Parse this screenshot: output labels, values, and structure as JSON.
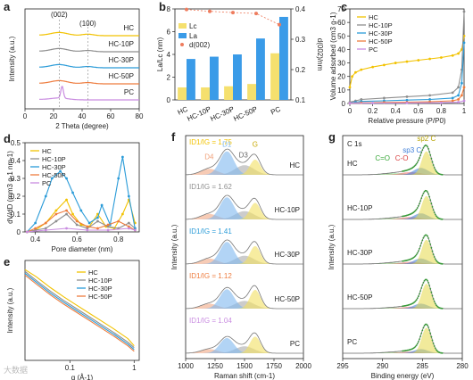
{
  "colors": {
    "HC": "#f2c200",
    "HC10P": "#8e8e8e",
    "HC30P": "#2a9bd8",
    "HC50P": "#ee7c3e",
    "PC": "#c98ce0",
    "Lc": "#f5e06e",
    "La": "#3a9be8",
    "d002": "#ee7c5e",
    "D1": "#7fb8ee",
    "D3": "#9a9a9a",
    "G": "#f2e060",
    "D4": "#f0a078"
  },
  "watermark": "大数据",
  "panels": [
    {
      "id": "a",
      "label": "a",
      "chart_data": {
        "type": "line",
        "xlabel": "2 Theta (degree)",
        "ylabel": "Intensity (a.u.)",
        "xlim": [
          0,
          80
        ],
        "x_ticks": [
          0,
          20,
          40,
          60,
          80
        ],
        "peak_labels": [
          "(002)",
          "(100)"
        ],
        "series": [
          {
            "name": "HC",
            "offset": 4,
            "peaks": [
              [
                24,
                0.25,
                6
              ],
              [
                44,
                0.12,
                4
              ]
            ]
          },
          {
            "name": "HC-10P",
            "offset": 3,
            "peaks": [
              [
                24,
                0.25,
                6
              ],
              [
                44,
                0.1,
                4
              ]
            ]
          },
          {
            "name": "HC-30P",
            "offset": 2,
            "peaks": [
              [
                24,
                0.25,
                6
              ],
              [
                44,
                0.1,
                4
              ]
            ]
          },
          {
            "name": "HC-50P",
            "offset": 1,
            "peaks": [
              [
                24,
                0.25,
                6
              ],
              [
                44,
                0.1,
                4
              ]
            ]
          },
          {
            "name": "PC",
            "offset": 0,
            "peaks": [
              [
                26,
                0.95,
                0.9
              ],
              [
                24,
                0.15,
                6
              ]
            ]
          }
        ]
      }
    },
    {
      "id": "b",
      "label": "b",
      "chart_data": {
        "type": "bar",
        "categories": [
          "HC",
          "HC-10P",
          "HC-30P",
          "HC-50P",
          "PC"
        ],
        "series": [
          {
            "name": "Lc",
            "values": [
              1.1,
              1.1,
              1.2,
              1.4,
              4.1
            ]
          },
          {
            "name": "La",
            "values": [
              3.6,
              3.8,
              4.0,
              5.4,
              7.3
            ]
          }
        ],
        "secondary": {
          "name": "d(002)",
          "values": [
            0.398,
            0.392,
            0.388,
            0.385,
            0.348
          ]
        },
        "ylabel": "La/Lc (nm)",
        "ylim": [
          0,
          8
        ],
        "y2label": "d(002)/nm",
        "y2lim": [
          0.1,
          0.4
        ],
        "y2_ticks": [
          0.1,
          0.2,
          0.3,
          0.4
        ],
        "legend_labels": [
          "Lc",
          "La",
          "d(002)"
        ]
      }
    },
    {
      "id": "c",
      "label": "c",
      "chart_data": {
        "type": "line",
        "xlabel": "Relative pressure (P/P0)",
        "ylabel": "Volume adsorbed (cm3 g-1)",
        "xlim": [
          0,
          1
        ],
        "ylim": [
          0,
          70
        ],
        "x_ticks": [
          0,
          0.2,
          0.4,
          0.6,
          0.8,
          1.0
        ],
        "y_ticks": [
          0,
          10,
          20,
          30,
          40,
          50,
          60,
          70
        ],
        "series": [
          {
            "name": "HC",
            "x": [
              0,
              0.02,
              0.05,
              0.1,
              0.2,
              0.3,
              0.4,
              0.5,
              0.6,
              0.7,
              0.8,
              0.9,
              0.95,
              0.98,
              1.0
            ],
            "y": [
              12,
              20,
              23,
              25,
              27,
              28.5,
              30,
              31,
              32,
              33,
              34,
              35.5,
              37,
              40,
              50
            ]
          },
          {
            "name": "HC-10P",
            "x": [
              0,
              0.05,
              0.1,
              0.3,
              0.5,
              0.7,
              0.9,
              0.95,
              0.98,
              1.0
            ],
            "y": [
              1,
              2,
              3,
              4,
              5,
              6,
              8,
              12,
              25,
              68
            ]
          },
          {
            "name": "HC-30P",
            "x": [
              0,
              0.05,
              0.1,
              0.3,
              0.5,
              0.7,
              0.9,
              0.95,
              0.98,
              1.0
            ],
            "y": [
              0.5,
              1,
              1.5,
              2,
              2.5,
              3,
              4,
              6,
              15,
              45
            ]
          },
          {
            "name": "HC-50P",
            "x": [
              0,
              0.1,
              0.3,
              0.5,
              0.7,
              0.9,
              0.95,
              0.98,
              1.0
            ],
            "y": [
              0.3,
              0.5,
              0.8,
              1,
              1.3,
              2,
              3,
              6,
              12
            ]
          },
          {
            "name": "PC",
            "x": [
              0,
              0.2,
              0.5,
              0.8,
              0.95,
              1.0
            ],
            "y": [
              0.2,
              0.3,
              0.4,
              0.6,
              1,
              2
            ]
          }
        ]
      }
    },
    {
      "id": "d",
      "label": "d",
      "chart_data": {
        "type": "line",
        "xlabel": "Pore diameter (nm)",
        "ylabel": "dV/dD (mm3 g-1 nm-1)",
        "xlim": [
          0.35,
          0.9
        ],
        "ylim": [
          0,
          0.5
        ],
        "x_ticks": [
          0.4,
          0.6,
          0.8
        ],
        "y_ticks": [
          0,
          0.1,
          0.2,
          0.3,
          0.4,
          0.5
        ],
        "series": [
          {
            "name": "HC",
            "x": [
              0.36,
              0.4,
              0.45,
              0.5,
              0.55,
              0.58,
              0.62,
              0.66,
              0.7,
              0.74,
              0.78,
              0.82,
              0.85,
              0.88
            ],
            "y": [
              0.0,
              0.01,
              0.05,
              0.12,
              0.18,
              0.1,
              0.04,
              0.03,
              0.1,
              0.03,
              0.02,
              0.1,
              0.18,
              0.05
            ]
          },
          {
            "name": "HC-10P",
            "x": [
              0.36,
              0.4,
              0.45,
              0.5,
              0.55,
              0.6,
              0.65,
              0.7,
              0.75,
              0.8,
              0.85,
              0.88
            ],
            "y": [
              0,
              0.01,
              0.02,
              0.06,
              0.1,
              0.04,
              0.02,
              0.06,
              0.03,
              0.02,
              0.05,
              0.02
            ]
          },
          {
            "name": "HC-30P",
            "x": [
              0.36,
              0.4,
              0.45,
              0.48,
              0.52,
              0.55,
              0.58,
              0.62,
              0.66,
              0.7,
              0.72,
              0.76,
              0.8,
              0.82,
              0.85,
              0.88
            ],
            "y": [
              0,
              0.05,
              0.2,
              0.3,
              0.34,
              0.3,
              0.22,
              0.12,
              0.05,
              0.08,
              0.15,
              0.04,
              0.3,
              0.42,
              0.2,
              0.02
            ]
          },
          {
            "name": "HC-50P",
            "x": [
              0.36,
              0.4,
              0.45,
              0.5,
              0.55,
              0.6,
              0.65,
              0.7,
              0.75,
              0.8,
              0.85,
              0.88
            ],
            "y": [
              0,
              0.02,
              0.05,
              0.1,
              0.12,
              0.06,
              0.03,
              0.02,
              0.04,
              0.06,
              0.03,
              0.01
            ]
          },
          {
            "name": "PC",
            "x": [
              0.36,
              0.45,
              0.55,
              0.65,
              0.75,
              0.85,
              0.88
            ],
            "y": [
              0,
              0.01,
              0.02,
              0.01,
              0.01,
              0.02,
              0.01
            ]
          }
        ]
      }
    },
    {
      "id": "e",
      "label": "e",
      "chart_data": {
        "type": "line",
        "xlabel": "q (Å-1)",
        "ylabel": "Intensity (a.u.)",
        "x_scale": "log",
        "xlim": [
          0.02,
          1.2
        ],
        "x_ticks": [
          0.1,
          1
        ],
        "series": [
          {
            "name": "HC",
            "x": [
              0.02,
              0.03,
              0.05,
              0.08,
              0.12,
              0.2,
              0.3,
              0.5,
              0.8,
              1.0
            ],
            "y": [
              5.0,
              4.6,
              4.0,
              3.5,
              3.1,
              2.6,
              2.2,
              1.7,
              1.2,
              0.8
            ]
          },
          {
            "name": "HC-10P",
            "x": [
              0.02,
              0.03,
              0.05,
              0.08,
              0.12,
              0.2,
              0.3,
              0.5,
              0.8,
              1.0
            ],
            "y": [
              4.9,
              4.4,
              3.8,
              3.3,
              2.9,
              2.4,
              2.0,
              1.5,
              1.0,
              0.7
            ]
          },
          {
            "name": "HC-30P",
            "x": [
              0.02,
              0.03,
              0.05,
              0.08,
              0.12,
              0.2,
              0.3,
              0.5,
              0.8,
              1.0
            ],
            "y": [
              4.8,
              4.3,
              3.7,
              3.2,
              2.8,
              2.3,
              1.9,
              1.4,
              0.9,
              0.6
            ]
          },
          {
            "name": "HC-50P",
            "x": [
              0.02,
              0.03,
              0.05,
              0.08,
              0.12,
              0.2,
              0.3,
              0.5,
              0.8,
              1.0
            ],
            "y": [
              4.7,
              4.2,
              3.6,
              3.1,
              2.7,
              2.2,
              1.8,
              1.3,
              0.8,
              0.5
            ]
          }
        ]
      }
    },
    {
      "id": "f",
      "label": "f",
      "chart_data": {
        "type": "area",
        "xlabel": "Raman shift (cm-1)",
        "ylabel": "Intensity (a.u.)",
        "xlim": [
          1000,
          2000
        ],
        "x_ticks": [
          1000,
          1250,
          1500,
          1750,
          2000
        ],
        "band_labels": [
          "D4",
          "D1",
          "D3",
          "G"
        ],
        "spectra": [
          {
            "name": "HC",
            "ratio_label": "ID1/IG = 1.75",
            "D4": [
              1200,
              0.22,
              70
            ],
            "D1": [
              1350,
              0.85,
              60
            ],
            "D3": [
              1500,
              0.35,
              80
            ],
            "G": [
              1590,
              0.55,
              45
            ]
          },
          {
            "name": "HC-10P",
            "ratio_label": "ID1/IG = 1.62",
            "D4": [
              1200,
              0.2,
              70
            ],
            "D1": [
              1350,
              0.8,
              60
            ],
            "D3": [
              1500,
              0.3,
              80
            ],
            "G": [
              1590,
              0.6,
              45
            ]
          },
          {
            "name": "HC-30P",
            "ratio_label": "ID1/IG = 1.41",
            "D4": [
              1200,
              0.2,
              70
            ],
            "D1": [
              1350,
              0.8,
              60
            ],
            "D3": [
              1500,
              0.3,
              80
            ],
            "G": [
              1590,
              0.65,
              45
            ]
          },
          {
            "name": "HC-50P",
            "ratio_label": "ID1/IG = 1.12",
            "D4": [
              1200,
              0.18,
              70
            ],
            "D1": [
              1350,
              0.7,
              60
            ],
            "D3": [
              1500,
              0.28,
              80
            ],
            "G": [
              1590,
              0.68,
              45
            ]
          },
          {
            "name": "PC",
            "ratio_label": "ID1/IG = 1.04",
            "D4": [
              1200,
              0.15,
              70
            ],
            "D1": [
              1350,
              0.55,
              60
            ],
            "D3": [
              1500,
              0.25,
              80
            ],
            "G": [
              1590,
              0.6,
              45
            ]
          }
        ]
      }
    },
    {
      "id": "g",
      "label": "g",
      "chart_data": {
        "type": "area",
        "title": "C 1s",
        "xlabel": "Binding energy (eV)",
        "ylabel": "Intensity (a.u.)",
        "xlim": [
          295,
          280
        ],
        "x_ticks": [
          295,
          290,
          285,
          280
        ],
        "component_labels": [
          "C=O",
          "C-O",
          "sp3 C",
          "sp2 C"
        ],
        "spectra": [
          {
            "name": "HC",
            "sp2": [
              284.5,
              0.85,
              0.6
            ],
            "sp3": [
              285.2,
              0.25,
              0.9
            ],
            "CO": [
              286.5,
              0.1,
              1.2
            ],
            "CdO": [
              288.5,
              0.06,
              1.5
            ]
          },
          {
            "name": "HC-10P",
            "sp2": [
              284.5,
              0.85,
              0.6
            ],
            "sp3": [
              285.2,
              0.22,
              0.9
            ],
            "CO": [
              286.5,
              0.09,
              1.2
            ],
            "CdO": [
              288.5,
              0.05,
              1.5
            ]
          },
          {
            "name": "HC-30P",
            "sp2": [
              284.5,
              0.88,
              0.6
            ],
            "sp3": [
              285.2,
              0.2,
              0.9
            ],
            "CO": [
              286.5,
              0.08,
              1.2
            ],
            "CdO": [
              288.5,
              0.05,
              1.5
            ]
          },
          {
            "name": "HC-50P",
            "sp2": [
              284.5,
              0.9,
              0.6
            ],
            "sp3": [
              285.2,
              0.18,
              0.9
            ],
            "CO": [
              286.5,
              0.07,
              1.2
            ],
            "CdO": [
              288.5,
              0.04,
              1.5
            ]
          },
          {
            "name": "PC",
            "sp2": [
              284.5,
              0.92,
              0.6
            ],
            "sp3": [
              285.2,
              0.15,
              0.9
            ],
            "CO": [
              286.5,
              0.06,
              1.2
            ],
            "CdO": [
              288.5,
              0.04,
              1.5
            ]
          }
        ]
      }
    }
  ]
}
